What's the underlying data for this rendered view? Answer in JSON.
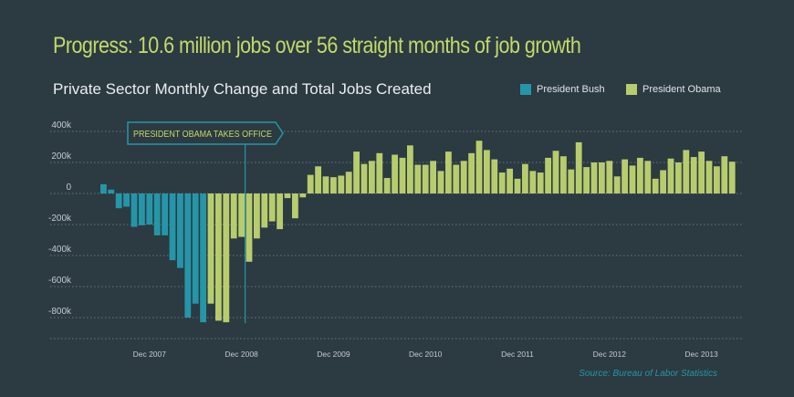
{
  "headline": "Progress: 10.6 million jobs over 56 straight months of job growth",
  "subtitle": "Private Sector Monthly Change and Total Jobs Created",
  "legend": [
    {
      "label": "President Bush",
      "color": "#2596a8"
    },
    {
      "label": "President Obama",
      "color": "#b8cc6e"
    }
  ],
  "callout": "PRESIDENT OBAMA TAKES OFFICE",
  "source": "Source: Bureau of Labor Statistics",
  "colors": {
    "background": "#2c3a42",
    "headline": "#c4d96a",
    "grid": "#7d8a90",
    "axis_text": "#c3cbcf",
    "source": "#2596a8"
  },
  "chart_data": {
    "type": "bar",
    "ylim": [
      -900,
      400
    ],
    "yunit": "thousands of jobs",
    "yticks": [
      {
        "value": 400,
        "label": "400k"
      },
      {
        "value": 200,
        "label": "200k"
      },
      {
        "value": 0,
        "label": "0"
      },
      {
        "value": -200,
        "label": "-200k"
      },
      {
        "value": -400,
        "label": "-400k"
      },
      {
        "value": -600,
        "label": "-600k"
      },
      {
        "value": -800,
        "label": "-800k"
      }
    ],
    "xticks": [
      {
        "index": 6,
        "label": "Dec 2007"
      },
      {
        "index": 18,
        "label": "Dec 2008"
      },
      {
        "index": 30,
        "label": "Dec 2009"
      },
      {
        "index": 42,
        "label": "Dec 2010"
      },
      {
        "index": 54,
        "label": "Dec 2011"
      },
      {
        "index": 66,
        "label": "Dec 2012"
      },
      {
        "index": 78,
        "label": "Dec 2013"
      }
    ],
    "callout_index": 19,
    "series": [
      {
        "name": "President Bush",
        "start_index": 0,
        "values": [
          60,
          25,
          -95,
          -85,
          -215,
          -205,
          -200,
          -270,
          -270,
          -430,
          -480,
          -800,
          -710,
          -830
        ]
      },
      {
        "name": "President Obama",
        "start_index": 14,
        "values": [
          -710,
          -820,
          -830,
          -290,
          -280,
          -440,
          -290,
          -220,
          -180,
          -230,
          -30,
          -160,
          -25,
          120,
          175,
          110,
          105,
          115,
          140,
          270,
          190,
          210,
          260,
          100,
          250,
          230,
          310,
          185,
          185,
          210,
          145,
          270,
          185,
          210,
          260,
          340,
          280,
          220,
          135,
          160,
          95,
          190,
          145,
          135,
          230,
          275,
          240,
          155,
          330,
          170,
          200,
          200,
          210,
          110,
          220,
          180,
          230,
          210,
          95,
          150,
          225,
          200,
          280,
          235,
          270,
          210,
          175,
          240,
          205
        ]
      }
    ]
  }
}
